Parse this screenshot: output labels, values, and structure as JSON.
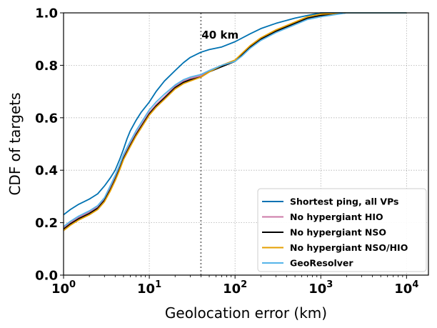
{
  "chart_data": {
    "type": "line",
    "title": "",
    "xlabel": "Geolocation error (km)",
    "ylabel": "CDF of targets",
    "x_scale": "log",
    "xlim": [
      1,
      18000
    ],
    "ylim": [
      0,
      1
    ],
    "grid": true,
    "legend_position": "lower-right",
    "x_ticks": [
      {
        "value": 1,
        "base": "10",
        "exp": "0"
      },
      {
        "value": 10,
        "base": "10",
        "exp": "1"
      },
      {
        "value": 100,
        "base": "10",
        "exp": "2"
      },
      {
        "value": 1000,
        "base": "10",
        "exp": "3"
      },
      {
        "value": 10000,
        "base": "10",
        "exp": "4"
      }
    ],
    "y_ticks": [
      "0.0",
      "0.2",
      "0.4",
      "0.6",
      "0.8",
      "1.0"
    ],
    "annotation": {
      "x": 40,
      "label": "40 km",
      "style": "dotted-vertical"
    },
    "series": [
      {
        "name": "Shortest ping, all VPs",
        "color": "#0072b2",
        "x": [
          1,
          1.2,
          1.5,
          2,
          2.5,
          3,
          3.5,
          4,
          4.5,
          5,
          5.5,
          6,
          7,
          8,
          10,
          12,
          15,
          20,
          25,
          30,
          40,
          50,
          70,
          100,
          150,
          200,
          300,
          500,
          700,
          1000,
          1500,
          3000,
          10000
        ],
        "y": [
          0.23,
          0.25,
          0.27,
          0.29,
          0.31,
          0.34,
          0.37,
          0.4,
          0.44,
          0.48,
          0.52,
          0.55,
          0.59,
          0.62,
          0.66,
          0.7,
          0.74,
          0.78,
          0.81,
          0.83,
          0.85,
          0.86,
          0.87,
          0.89,
          0.92,
          0.94,
          0.96,
          0.98,
          0.99,
          1.0,
          1.0,
          1.0,
          1.0
        ]
      },
      {
        "name": "No hypergiant HIO",
        "color": "#cc79a7",
        "x": [
          1,
          1.2,
          1.5,
          2,
          2.5,
          3,
          3.5,
          4,
          4.5,
          5,
          6,
          7,
          8,
          10,
          12,
          15,
          20,
          25,
          30,
          40,
          50,
          70,
          100,
          120,
          150,
          200,
          300,
          500,
          700,
          1000,
          2000,
          10000
        ],
        "y": [
          0.18,
          0.2,
          0.22,
          0.24,
          0.26,
          0.29,
          0.33,
          0.37,
          0.41,
          0.45,
          0.5,
          0.54,
          0.57,
          0.62,
          0.65,
          0.68,
          0.72,
          0.74,
          0.75,
          0.76,
          0.78,
          0.8,
          0.82,
          0.84,
          0.87,
          0.9,
          0.93,
          0.96,
          0.98,
          0.99,
          1.0,
          1.0
        ]
      },
      {
        "name": "No hypergiant NSO",
        "color": "#000000",
        "x": [
          1,
          1.2,
          1.5,
          2,
          2.5,
          3,
          3.5,
          4,
          4.5,
          5,
          6,
          7,
          8,
          10,
          12,
          15,
          20,
          25,
          30,
          40,
          50,
          70,
          100,
          120,
          150,
          200,
          300,
          500,
          700,
          1000,
          2000,
          10000
        ],
        "y": [
          0.175,
          0.195,
          0.215,
          0.235,
          0.255,
          0.285,
          0.325,
          0.365,
          0.405,
          0.445,
          0.495,
          0.535,
          0.565,
          0.615,
          0.645,
          0.675,
          0.715,
          0.735,
          0.745,
          0.755,
          0.775,
          0.795,
          0.815,
          0.84,
          0.87,
          0.9,
          0.93,
          0.96,
          0.98,
          0.99,
          1.0,
          1.0
        ]
      },
      {
        "name": "No hypergiant NSO/HIO",
        "color": "#e69f00",
        "x": [
          1,
          1.2,
          1.5,
          2,
          2.5,
          3,
          3.5,
          4,
          4.5,
          5,
          6,
          7,
          8,
          10,
          12,
          15,
          20,
          25,
          30,
          40,
          50,
          70,
          100,
          120,
          150,
          200,
          300,
          500,
          700,
          1000,
          2000,
          10000
        ],
        "y": [
          0.17,
          0.19,
          0.21,
          0.23,
          0.25,
          0.28,
          0.32,
          0.36,
          0.4,
          0.44,
          0.49,
          0.53,
          0.56,
          0.61,
          0.64,
          0.67,
          0.71,
          0.73,
          0.74,
          0.755,
          0.775,
          0.8,
          0.82,
          0.845,
          0.875,
          0.905,
          0.935,
          0.965,
          0.985,
          0.995,
          1.0,
          1.0
        ]
      },
      {
        "name": "GeoResolver",
        "color": "#56b4e9",
        "x": [
          1,
          1.2,
          1.5,
          2,
          2.5,
          3,
          3.5,
          4,
          4.5,
          5,
          6,
          7,
          8,
          10,
          12,
          15,
          20,
          25,
          30,
          40,
          50,
          70,
          100,
          120,
          150,
          200,
          300,
          500,
          700,
          1000,
          2000,
          10000
        ],
        "y": [
          0.185,
          0.205,
          0.225,
          0.245,
          0.265,
          0.295,
          0.34,
          0.38,
          0.42,
          0.46,
          0.51,
          0.55,
          0.58,
          0.63,
          0.66,
          0.69,
          0.725,
          0.745,
          0.755,
          0.765,
          0.78,
          0.8,
          0.815,
          0.835,
          0.865,
          0.895,
          0.925,
          0.955,
          0.975,
          0.985,
          1.0,
          1.0
        ]
      }
    ]
  }
}
